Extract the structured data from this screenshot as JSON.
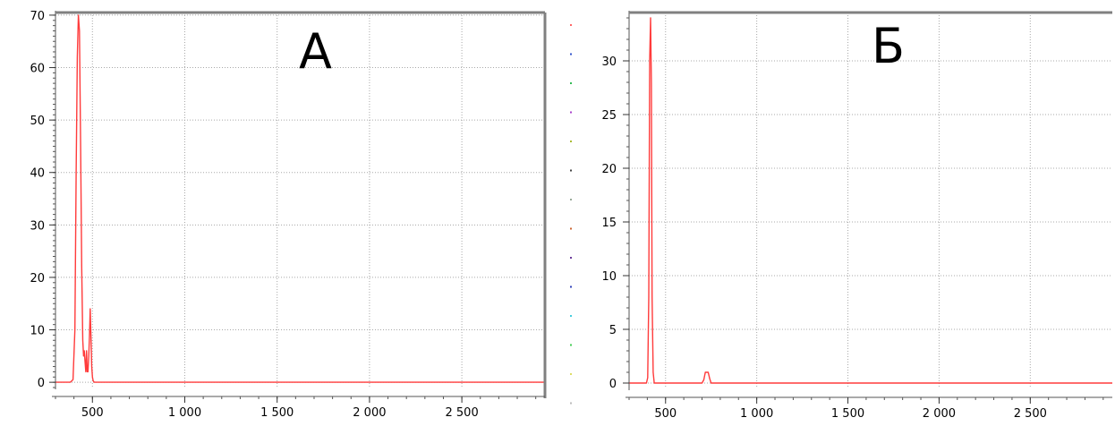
{
  "chart_data": [
    {
      "type": "line",
      "title": "А",
      "xlim": [
        300,
        2950
      ],
      "ylim": [
        -1,
        70.5
      ],
      "x_ticks": [
        500,
        1000,
        1500,
        2000,
        2500
      ],
      "x_tick_labels": [
        "500",
        "1 000",
        "1 500",
        "2 000",
        "2 500"
      ],
      "y_ticks": [
        0,
        10,
        20,
        30,
        40,
        50,
        60,
        70
      ],
      "y_tick_labels": [
        "0",
        "10",
        "20",
        "30",
        "40",
        "50",
        "60",
        "70"
      ],
      "y_minor_step": 1,
      "x_minor_step": 100,
      "grid": true,
      "series": [
        {
          "color": "#ff3b3b",
          "x": [
            300,
            380,
            395,
            405,
            412,
            418,
            424,
            430,
            436,
            442,
            448,
            452,
            456,
            460,
            464,
            468,
            472,
            476,
            480,
            484,
            488,
            492,
            496,
            500,
            504,
            510,
            520,
            1000,
            2000,
            2950
          ],
          "y": [
            0,
            0,
            0.5,
            10,
            40,
            62,
            70,
            67,
            45,
            22,
            8,
            5,
            6,
            4,
            2,
            6,
            2,
            2,
            5,
            9,
            14,
            9,
            3,
            1,
            0.3,
            0,
            0,
            0,
            0,
            0
          ]
        }
      ]
    },
    {
      "type": "line",
      "title": "Б",
      "xlim": [
        300,
        2950
      ],
      "ylim": [
        -0.5,
        34.5
      ],
      "x_ticks": [
        500,
        1000,
        1500,
        2000,
        2500
      ],
      "x_tick_labels": [
        "500",
        "1 000",
        "1 500",
        "2 000",
        "2 500"
      ],
      "y_ticks": [
        0,
        5,
        10,
        15,
        20,
        25,
        30
      ],
      "y_tick_labels": [
        "0",
        "5",
        "10",
        "15",
        "20",
        "25",
        "30"
      ],
      "y_minor_step": 1,
      "x_minor_step": 100,
      "grid": true,
      "series": [
        {
          "color": "#ff3b3b",
          "x": [
            300,
            395,
            402,
            408,
            413,
            418,
            422,
            426,
            432,
            438,
            445,
            700,
            710,
            718,
            726,
            734,
            742,
            750,
            760,
            2950
          ],
          "y": [
            0,
            0,
            0.5,
            8,
            30,
            34,
            28,
            8,
            1,
            0,
            0,
            0,
            0.3,
            1,
            1,
            1,
            0.4,
            0,
            0,
            0
          ]
        }
      ]
    }
  ]
}
